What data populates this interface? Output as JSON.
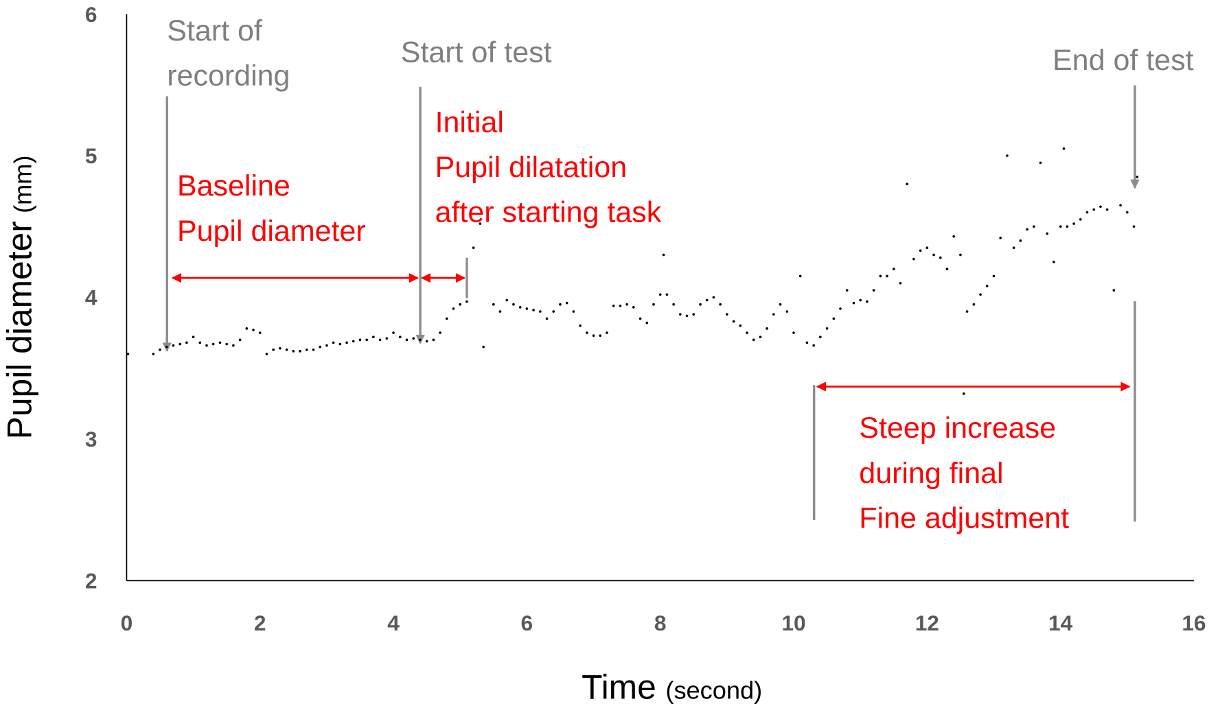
{
  "chart_data": {
    "type": "scatter",
    "x_label": "Time",
    "x_unit": "(second)",
    "y_label": "Pupil diameter",
    "y_unit": "(mm)",
    "xlim": [
      0,
      16
    ],
    "xticks": [
      0,
      2,
      4,
      6,
      8,
      10,
      12,
      14,
      16
    ],
    "ylim": [
      2,
      6
    ],
    "yticks": [
      2,
      3,
      4,
      5,
      6
    ],
    "color": "#000000",
    "annotations": {
      "start_recording": [
        "Start of",
        "recording"
      ],
      "start_test": [
        "Start of test"
      ],
      "end_test": [
        "End of test"
      ],
      "baseline": [
        "Baseline",
        "Pupil diameter"
      ],
      "initial": [
        "Initial",
        "Pupil dilatation",
        "after starting task"
      ],
      "steep": [
        "Steep increase",
        "during final",
        "Fine adjustment"
      ]
    },
    "x": [
      0.02,
      0.4,
      0.5,
      0.6,
      0.7,
      0.8,
      0.9,
      1.0,
      1.1,
      1.2,
      1.3,
      1.4,
      1.5,
      1.6,
      1.7,
      1.8,
      1.9,
      2.0,
      2.1,
      2.2,
      2.3,
      2.4,
      2.5,
      2.6,
      2.7,
      2.8,
      2.9,
      3.0,
      3.1,
      3.2,
      3.3,
      3.4,
      3.5,
      3.6,
      3.7,
      3.8,
      3.9,
      4.0,
      4.1,
      4.2,
      4.3,
      4.4,
      4.5,
      4.6,
      4.7,
      4.8,
      4.9,
      5.0,
      5.1,
      5.2,
      5.3,
      5.35,
      5.5,
      5.6,
      5.7,
      5.8,
      5.9,
      6.0,
      6.1,
      6.2,
      6.3,
      6.4,
      6.5,
      6.6,
      6.7,
      6.8,
      6.9,
      7.0,
      7.1,
      7.2,
      7.3,
      7.4,
      7.5,
      7.6,
      7.7,
      7.8,
      7.9,
      8.0,
      8.05,
      8.1,
      8.2,
      8.3,
      8.4,
      8.5,
      8.6,
      8.7,
      8.8,
      8.9,
      9.0,
      9.1,
      9.2,
      9.3,
      9.4,
      9.5,
      9.6,
      9.7,
      9.8,
      9.9,
      10.0,
      10.1,
      10.2,
      10.3,
      10.4,
      10.5,
      10.6,
      10.7,
      10.8,
      10.9,
      11.0,
      11.1,
      11.2,
      11.3,
      11.4,
      11.5,
      11.6,
      11.7,
      11.8,
      11.9,
      12.0,
      12.1,
      12.2,
      12.3,
      12.4,
      12.5,
      12.55,
      12.6,
      12.7,
      12.8,
      12.9,
      13.0,
      13.1,
      13.2,
      13.3,
      13.4,
      13.5,
      13.6,
      13.7,
      13.8,
      13.9,
      14.0,
      14.05,
      14.1,
      14.2,
      14.3,
      14.4,
      14.5,
      14.6,
      14.7,
      14.8,
      14.9,
      15.0,
      15.1,
      15.15
    ],
    "values": [
      3.6,
      3.6,
      3.63,
      3.65,
      3.66,
      3.67,
      3.68,
      3.72,
      3.68,
      3.66,
      3.67,
      3.68,
      3.67,
      3.66,
      3.7,
      3.78,
      3.77,
      3.75,
      3.6,
      3.63,
      3.64,
      3.63,
      3.62,
      3.62,
      3.63,
      3.63,
      3.65,
      3.66,
      3.68,
      3.67,
      3.68,
      3.69,
      3.7,
      3.7,
      3.72,
      3.7,
      3.71,
      3.75,
      3.72,
      3.7,
      3.71,
      3.7,
      3.69,
      3.7,
      3.75,
      3.85,
      3.92,
      3.95,
      3.97,
      4.35,
      4.52,
      3.65,
      3.95,
      3.9,
      3.98,
      3.95,
      3.93,
      3.92,
      3.91,
      3.9,
      3.85,
      3.9,
      3.95,
      3.96,
      3.9,
      3.8,
      3.75,
      3.73,
      3.73,
      3.75,
      3.94,
      3.94,
      3.95,
      3.93,
      3.85,
      3.82,
      3.95,
      4.02,
      4.3,
      4.02,
      3.95,
      3.88,
      3.87,
      3.88,
      3.95,
      3.98,
      4.0,
      3.95,
      3.88,
      3.83,
      3.8,
      3.75,
      3.7,
      3.72,
      3.78,
      3.88,
      3.95,
      3.9,
      3.75,
      4.15,
      3.68,
      3.66,
      3.72,
      3.78,
      3.85,
      3.92,
      4.05,
      3.96,
      3.98,
      3.97,
      4.05,
      4.15,
      4.15,
      4.2,
      4.1,
      4.8,
      4.27,
      4.33,
      4.35,
      4.3,
      4.28,
      4.2,
      4.43,
      4.3,
      3.32,
      3.9,
      3.95,
      4.02,
      4.08,
      4.15,
      4.42,
      5.0,
      4.35,
      4.4,
      4.48,
      4.5,
      4.95,
      4.45,
      4.25,
      4.5,
      5.05,
      4.5,
      4.52,
      4.55,
      4.6,
      4.62,
      4.64,
      4.62,
      4.05,
      4.65,
      4.6,
      4.5,
      4.85
    ]
  }
}
